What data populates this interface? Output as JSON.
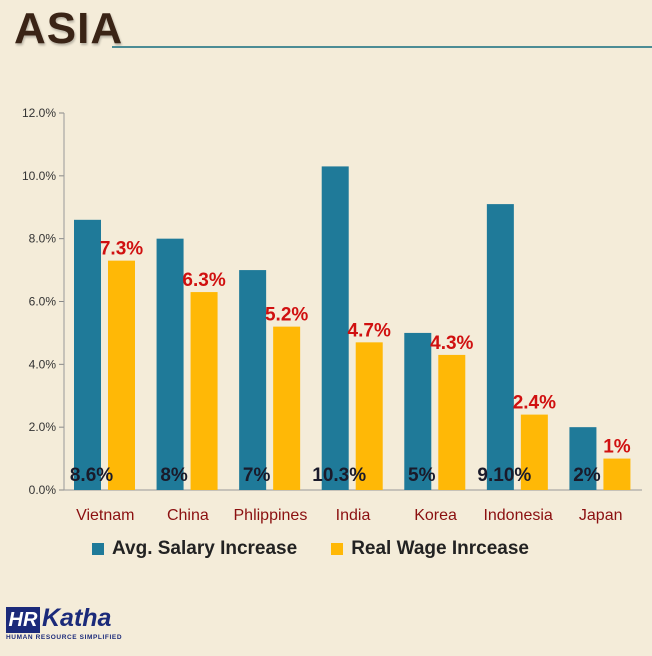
{
  "header": {
    "title": "ASIA"
  },
  "colors": {
    "series1": "#1f7a99",
    "series2": "#ffb806",
    "label_red": "#d01010",
    "category": "#8b1010"
  },
  "logo": {
    "hr": "HR",
    "katha": "Katha",
    "tagline": "HUMAN RESOURCE SIMPLIFIED"
  },
  "chart_data": {
    "type": "bar",
    "title": "",
    "categories": [
      "Vietnam",
      "China",
      "Phlippines",
      "India",
      "Korea",
      "Indonesia",
      "Japan"
    ],
    "ylim": [
      0,
      12
    ],
    "yticks": [
      "0.0%",
      "2.0%",
      "4.0%",
      "6.0%",
      "8.0%",
      "10.0%",
      "12.0%"
    ],
    "grid": false,
    "legend": "bottom",
    "series": [
      {
        "name": "Avg. Salary Increase",
        "values": [
          8.6,
          8.0,
          7.0,
          10.3,
          5.0,
          9.1,
          2.0
        ],
        "labels": [
          "8.6%",
          "8%",
          "7%",
          "10.3%",
          "5%",
          "9.10%",
          "2%"
        ]
      },
      {
        "name": "Real Wage Inrcease",
        "values": [
          7.3,
          6.3,
          5.2,
          4.7,
          4.3,
          2.4,
          1.0
        ],
        "labels": [
          "7.3%",
          "6.3%",
          "5.2%",
          "4.7%",
          "4.3%",
          "2.4%",
          "1%"
        ]
      }
    ]
  }
}
